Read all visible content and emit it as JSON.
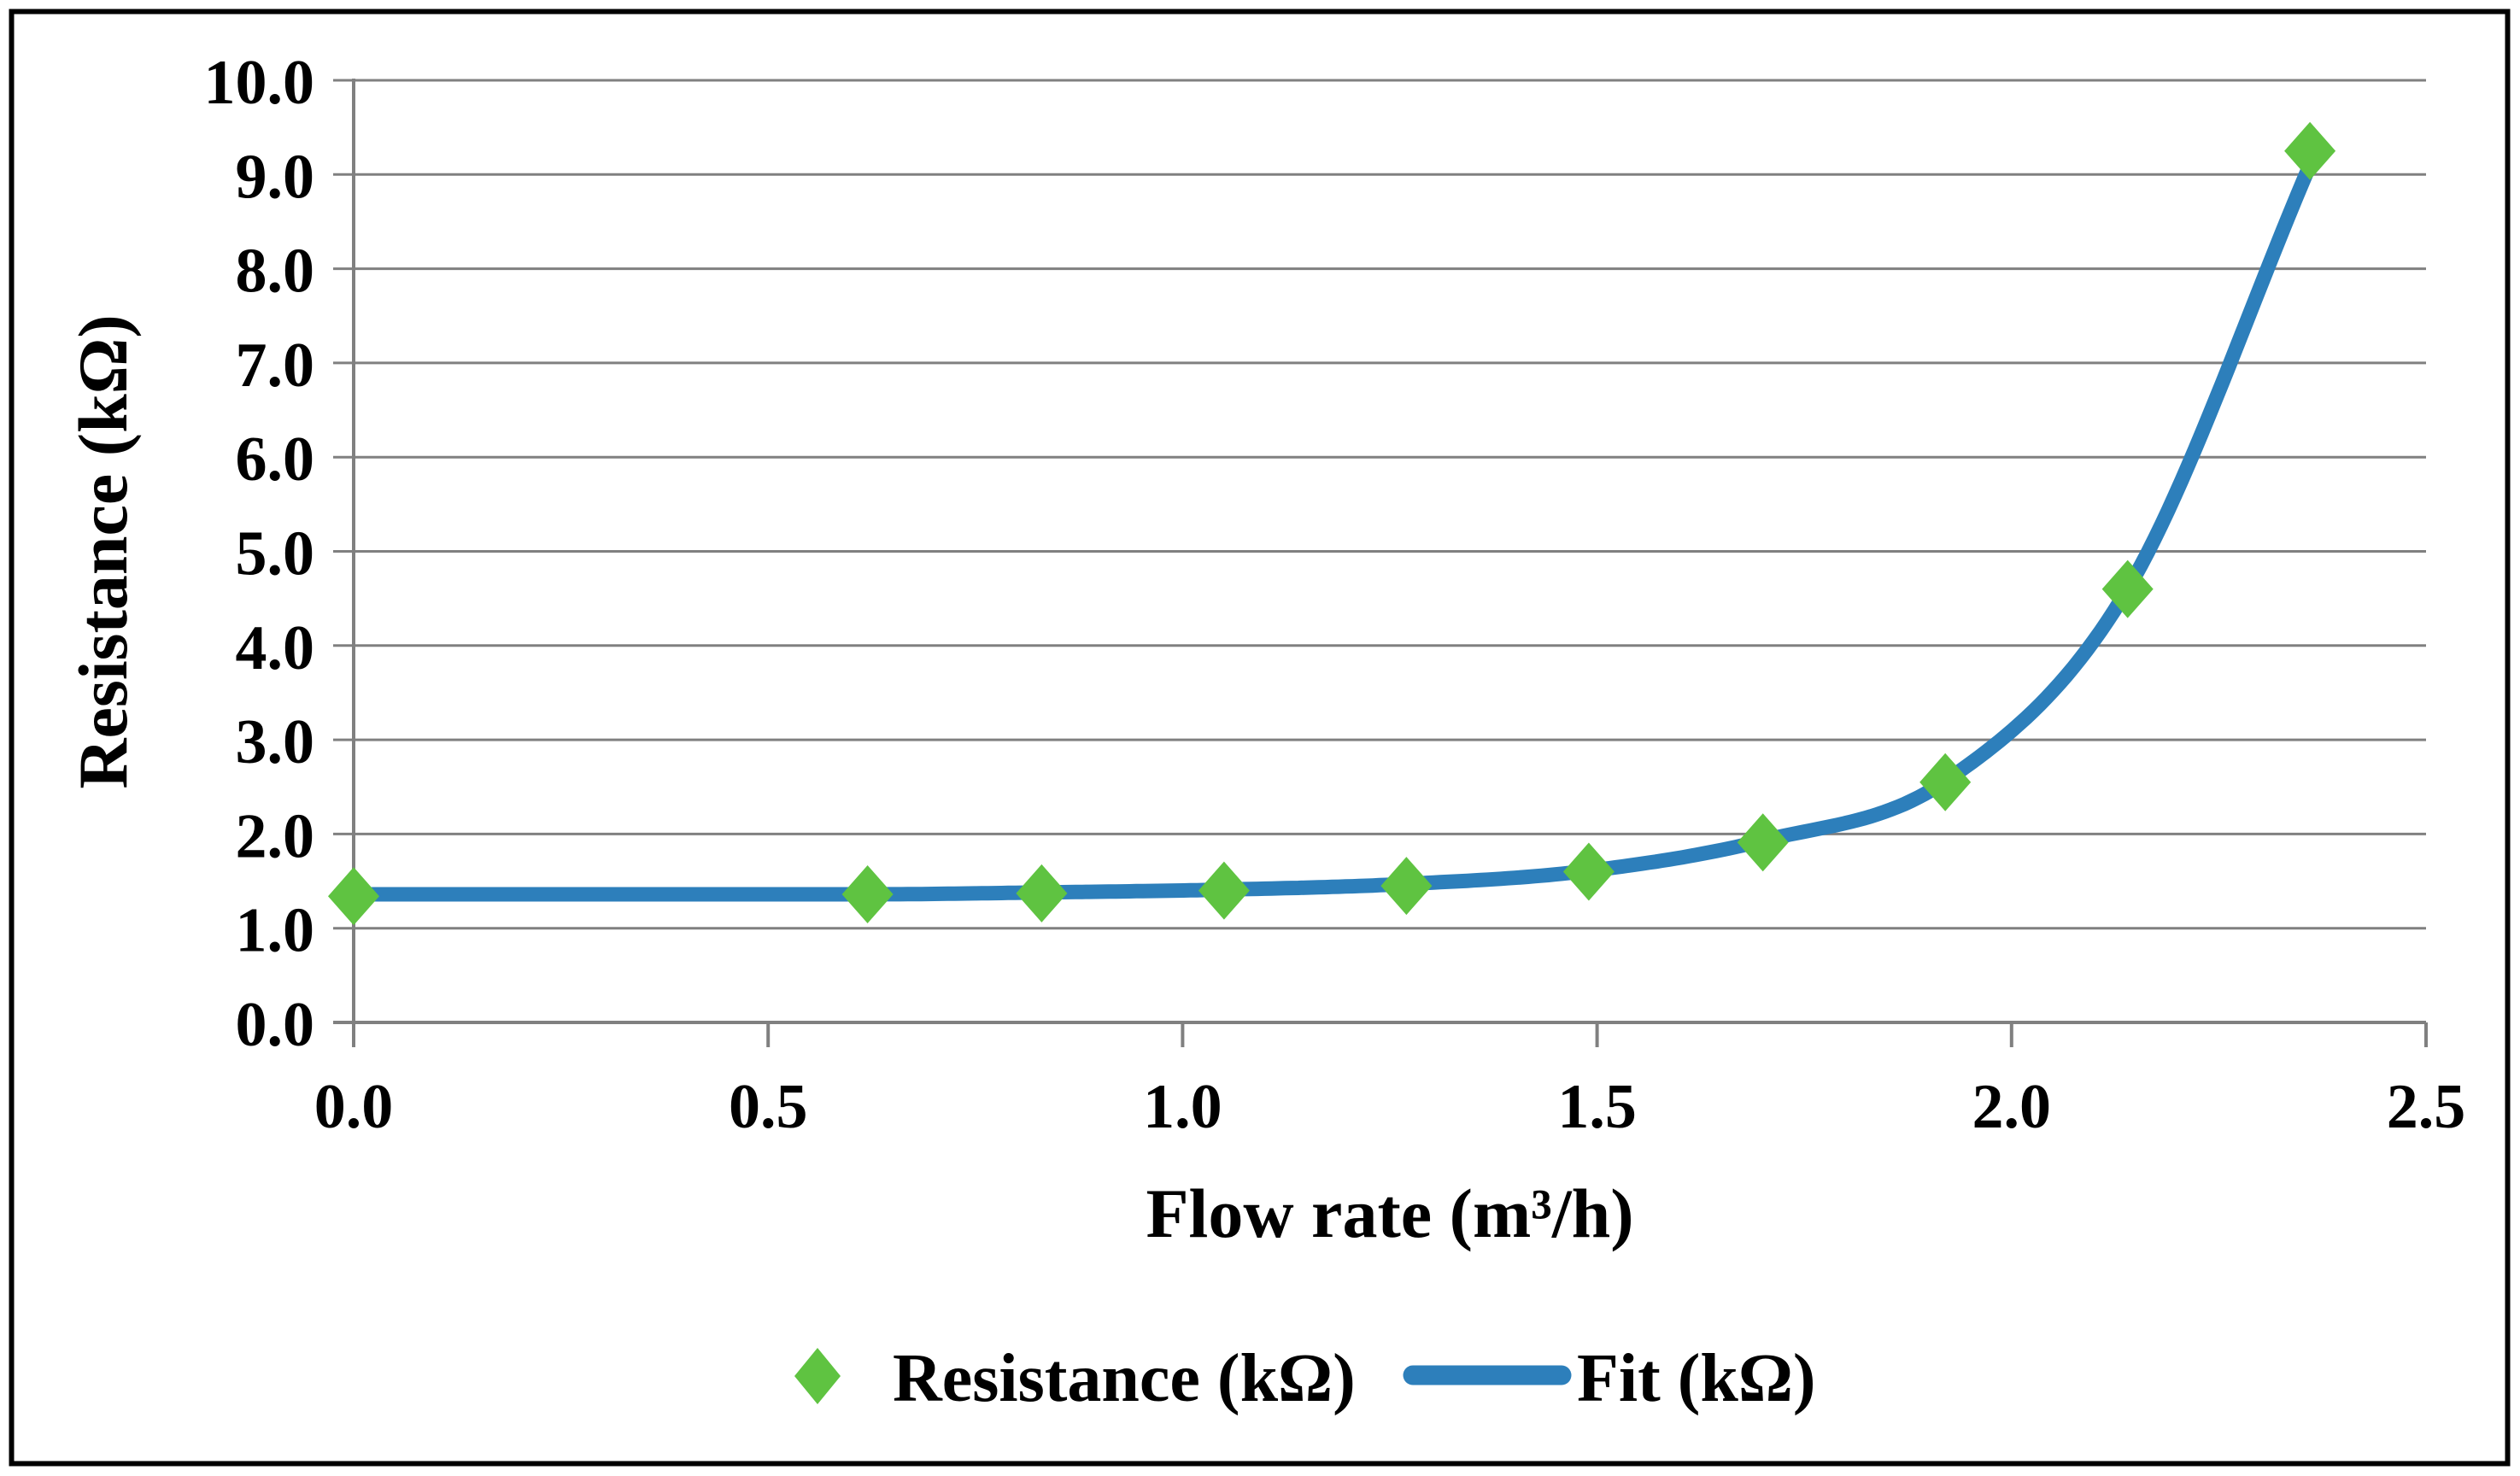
{
  "colors": {
    "grid": "#808080",
    "axis": "#808080",
    "text": "#000000",
    "marker_green": "#5FC341",
    "fit_blue": "#2D7FBB",
    "frame_black": "#000000",
    "background": "#ffffff"
  },
  "axes": {
    "x": {
      "title": "Flow rate (m³/h)",
      "tick_labels": [
        "0.0",
        "0.5",
        "1.0",
        "1.5",
        "2.0",
        "2.5"
      ],
      "tick_values": [
        0.0,
        0.5,
        1.0,
        1.5,
        2.0,
        2.5
      ],
      "range": [
        0.0,
        2.5
      ]
    },
    "y": {
      "title": "Resistance (kΩ)",
      "tick_labels": [
        "0.0",
        "1.0",
        "2.0",
        "3.0",
        "4.0",
        "5.0",
        "6.0",
        "7.0",
        "8.0",
        "9.0",
        "10.0"
      ],
      "tick_values": [
        0,
        1,
        2,
        3,
        4,
        5,
        6,
        7,
        8,
        9,
        10
      ],
      "range": [
        0.0,
        10.0
      ]
    }
  },
  "legend": {
    "items": [
      {
        "label": "Resistance (kΩ)",
        "swatch": "diamond",
        "color": "#5FC341"
      },
      {
        "label": "Fit (kΩ)",
        "swatch": "line",
        "color": "#2D7FBB"
      }
    ],
    "position": "bottom"
  },
  "chart_data": {
    "type": "scatter",
    "title": "",
    "xlabel": "Flow rate (m³/h)",
    "ylabel": "Resistance (kΩ)",
    "xlim": [
      0.0,
      2.5
    ],
    "ylim": [
      0.0,
      10.0
    ],
    "grid": "horizontal",
    "legend_position": "bottom",
    "x": [
      0.0,
      0.62,
      0.83,
      1.05,
      1.27,
      1.49,
      1.7,
      1.92,
      2.14,
      2.36
    ],
    "series": [
      {
        "name": "Resistance (kΩ)",
        "render": "markers-diamond",
        "color": "#5FC341",
        "values": [
          1.34,
          1.36,
          1.37,
          1.4,
          1.45,
          1.6,
          1.91,
          2.55,
          4.6,
          9.25
        ]
      },
      {
        "name": "Fit (kΩ)",
        "render": "smooth-line",
        "color": "#2D7FBB",
        "values": [
          1.36,
          1.36,
          1.38,
          1.41,
          1.47,
          1.61,
          1.93,
          2.56,
          4.6,
          9.1
        ]
      }
    ]
  }
}
